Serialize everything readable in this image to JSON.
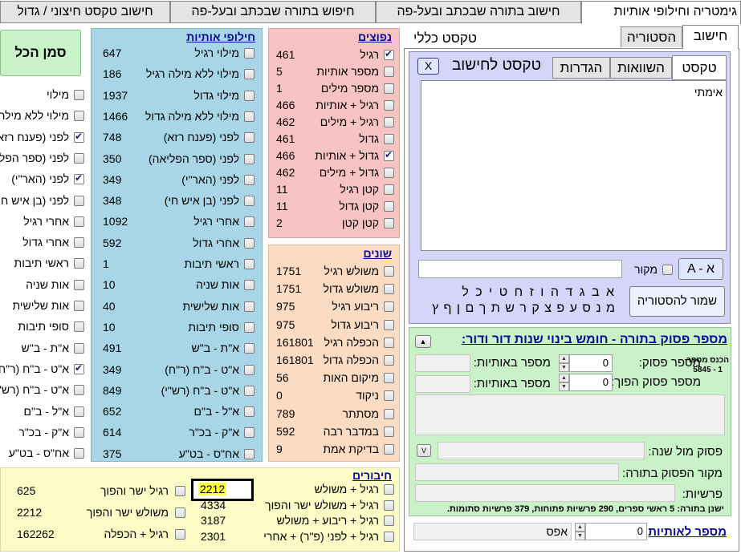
{
  "main_tabs": [
    "גימטריה וחילופי אותיות",
    "חישוב בתורה שבכתב ובעל-פה",
    "חיפוש בתורה שבכתב ובעל-פה",
    "חישוב טקסט חיצוני / גדול"
  ],
  "calc_tabs": [
    "חישוב",
    "הסטוריה"
  ],
  "general_text_label": "טקסט כללי",
  "text_tabs": [
    "טקסט",
    "השוואות",
    "הגדרות"
  ],
  "text_to_calc_label": "טקסט לחישוב",
  "clear_button": "X",
  "text_value": "אימתי",
  "source_label": "מקור",
  "az_button": "A - א",
  "letters_row1": "א  ב  ג  ד  ה  ו  ז  ח  ט  י  כ  ל",
  "letters_row2": "מ  נ  ס  ע  פ  צ  ק  ר  ש  ת  ך  ם  ן  ף  ץ",
  "save_history_button": "שמור להסטוריה",
  "select_all_button": "סמן הכל",
  "common": {
    "title": "נפוצים",
    "items": [
      {
        "label": "רגיל",
        "value": "461",
        "checked": true
      },
      {
        "label": "מספר אותיות",
        "value": "5",
        "checked": false
      },
      {
        "label": "מספר מילים",
        "value": "1",
        "checked": false
      },
      {
        "label": "רגיל + אותיות",
        "value": "466",
        "checked": false
      },
      {
        "label": "רגיל + מילים",
        "value": "462",
        "checked": false
      },
      {
        "label": "גדול",
        "value": "461",
        "checked": false
      },
      {
        "label": "גדול + אותיות",
        "value": "466",
        "checked": true
      },
      {
        "label": "גדול + מילים",
        "value": "462",
        "checked": false
      },
      {
        "label": "קטן רגיל",
        "value": "11",
        "checked": false
      },
      {
        "label": "קטן גדול",
        "value": "11",
        "checked": false
      },
      {
        "label": "קטן קטן",
        "value": "2",
        "checked": false
      }
    ]
  },
  "various": {
    "title": "שונים",
    "items": [
      {
        "label": "משולש רגיל",
        "value": "1751"
      },
      {
        "label": "משולש גדול",
        "value": "1751"
      },
      {
        "label": "ריבוע רגיל",
        "value": "975"
      },
      {
        "label": "ריבוע גדול",
        "value": "975"
      },
      {
        "label": "הכפלה רגיל",
        "value": "161801"
      },
      {
        "label": "הכפלה גדול",
        "value": "161801"
      },
      {
        "label": "מיקום האות",
        "value": "56"
      },
      {
        "label": "ניקוד",
        "value": "0"
      },
      {
        "label": "מסתתר",
        "value": "789"
      },
      {
        "label": "במדבר רבה",
        "value": "592"
      },
      {
        "label": "בדיקת אמת",
        "value": "9"
      }
    ]
  },
  "exchanges": {
    "title": "חילופי אותיות",
    "items": [
      {
        "label": "מילוי רגיל",
        "value": "647"
      },
      {
        "label": "מילוי ללא מילה רגיל",
        "value": "186"
      },
      {
        "label": "מילוי גדול",
        "value": "1937"
      },
      {
        "label": "מילוי ללא מילה גדול",
        "value": "1466"
      },
      {
        "label": "לפני (פענח רזא)",
        "value": "748"
      },
      {
        "label": "לפני (ספר הפליאה)",
        "value": "350"
      },
      {
        "label": "לפני (האר\"י)",
        "value": "349"
      },
      {
        "label": "לפני (בן איש חי)",
        "value": "348"
      },
      {
        "label": "אחרי רגיל",
        "value": "1092"
      },
      {
        "label": "אחרי גדול",
        "value": "592"
      },
      {
        "label": "ראשי תיבות",
        "value": "1"
      },
      {
        "label": "אות שניה",
        "value": "10"
      },
      {
        "label": "אות שלישית",
        "value": "40"
      },
      {
        "label": "סופי תיבות",
        "value": "10"
      },
      {
        "label": "א\"ת - ב\"ש",
        "value": "491"
      },
      {
        "label": "א\"ט - ב\"ח (ר\"ח)",
        "value": "349"
      },
      {
        "label": "א\"ט - ב\"ח (רש\"י)",
        "value": "849"
      },
      {
        "label": "א\"ל - ב\"ם",
        "value": "652"
      },
      {
        "label": "א\"ק - בכ\"ר",
        "value": "614"
      },
      {
        "label": "אח\"ס - בט\"ע",
        "value": "375"
      }
    ]
  },
  "side_items": [
    {
      "label": "מילוי",
      "checked": false
    },
    {
      "label": "מילוי ללא מילה",
      "checked": false
    },
    {
      "label": "לפני (פענח רזא)",
      "checked": true
    },
    {
      "label": "לפני (ספר הפליאה)",
      "checked": false
    },
    {
      "label": "לפני (האר\"י)",
      "checked": true
    },
    {
      "label": "לפני (בן איש חי)",
      "checked": false
    },
    {
      "label": "אחרי רגיל",
      "checked": false
    },
    {
      "label": "אחרי גדול",
      "checked": false
    },
    {
      "label": "ראשי תיבות",
      "checked": false
    },
    {
      "label": "אות שניה",
      "checked": false
    },
    {
      "label": "אות שלישית",
      "checked": false
    },
    {
      "label": "סופי תיבות",
      "checked": false
    },
    {
      "label": "א\"ת - ב\"ש",
      "checked": false
    },
    {
      "label": "א\"ט - ב\"ח (ר\"ח)",
      "checked": true
    },
    {
      "label": "א\"ט - ב\"ח (רש\"י)",
      "checked": false
    },
    {
      "label": "א\"ל - ב\"ם",
      "checked": false
    },
    {
      "label": "א\"ק - בכ\"ר",
      "checked": false
    },
    {
      "label": "אח\"ס - בט\"ע",
      "checked": false
    }
  ],
  "combos": {
    "title": "חיבורים",
    "col1": [
      {
        "label": "רגיל + משולש",
        "value": "2212",
        "highlight": true
      },
      {
        "label": "רגיל + משולש ישר והפוך",
        "value": "4334"
      },
      {
        "label": "רגיל + ריבוע + משולש",
        "value": "3187"
      },
      {
        "label": "רגיל + לפני (פ\"ר) + אחרי",
        "value": "2301"
      }
    ],
    "col2": [
      {
        "label": "רגיל ישר והפוך",
        "value": "625"
      },
      {
        "label": "משולש ישר והפוך",
        "value": "2212"
      },
      {
        "label": "רגיל + הכפלה",
        "value": "162262"
      }
    ]
  },
  "verse": {
    "title": "מספר פסוק בתורה - חומש בינוי שנות דור ודור:",
    "enter_number": "הכנס מספר",
    "range": "5845 - 1",
    "verse_number_label": "מספר פסוק:",
    "verse_number_value": "0",
    "letters_count_label": "מספר באותיות:",
    "reverse_verse_label": "מספר פסוק הפוך:",
    "reverse_verse_value": "0",
    "reverse_letters_label": "מספר באותיות:",
    "verse_vs_year_label": "פסוק מול שנה:",
    "source_label": "מקור הפסוק בתורה:",
    "parshiyot_label": "פרשיות:",
    "info": "ישנן בתורה: 5 ראשי ספרים, 290 פרשיות פתוחות, 379 פרשיות סתומות."
  },
  "number_to_letters": {
    "label": "מספר לאותיות",
    "value": "0",
    "result": "אפס"
  }
}
